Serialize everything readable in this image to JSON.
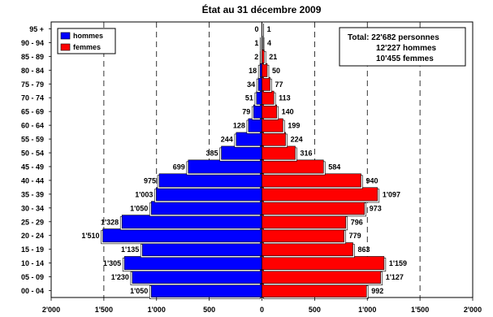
{
  "chart_data": {
    "type": "bar",
    "orientation": "horizontal",
    "layout": "population-pyramid",
    "title": "État au 31 décembre 2009",
    "categories": [
      "00 - 04",
      "05 - 09",
      "10 - 14",
      "15 - 19",
      "20 - 24",
      "25 - 29",
      "30 - 34",
      "35 - 39",
      "40 - 44",
      "45 - 49",
      "50 - 54",
      "55 - 59",
      "60 - 64",
      "65 - 69",
      "70 - 74",
      "75 - 79",
      "80 - 84",
      "85 - 89",
      "90 - 94",
      "95 +"
    ],
    "series": [
      {
        "name": "hommes",
        "color": "#0000FF",
        "side": "left",
        "values": [
          1050,
          1230,
          1305,
          1135,
          1510,
          1328,
          1050,
          1003,
          975,
          699,
          385,
          244,
          128,
          79,
          51,
          34,
          18,
          2,
          1,
          0
        ],
        "labels": [
          "1'050",
          "1'230",
          "1'305",
          "1'135",
          "1'510",
          "1'328",
          "1'050",
          "1'003",
          "975",
          "699",
          "385",
          "244",
          "128",
          "79",
          "51",
          "34",
          "18",
          "2",
          "1",
          "0"
        ]
      },
      {
        "name": "femmes",
        "color": "#FF0000",
        "side": "right",
        "values": [
          992,
          1127,
          1159,
          863,
          779,
          796,
          973,
          1097,
          940,
          584,
          316,
          224,
          199,
          140,
          113,
          77,
          50,
          21,
          4,
          1
        ],
        "labels": [
          "992",
          "1'127",
          "1'159",
          "863",
          "779",
          "796",
          "973",
          "1'097",
          "940",
          "584",
          "316",
          "224",
          "199",
          "140",
          "113",
          "77",
          "50",
          "21",
          "4",
          "1"
        ]
      }
    ],
    "xaxis": {
      "range": [
        -2000,
        2000
      ],
      "ticks": [
        -2000,
        -1500,
        -1000,
        -500,
        0,
        500,
        1000,
        1500,
        2000
      ],
      "tick_labels": [
        "2'000",
        "1'500",
        "1'000",
        "500",
        "0",
        "500",
        "1'000",
        "1'500",
        "2'000"
      ]
    },
    "gridlines": "vertical dashed",
    "legend": {
      "position": "top-left",
      "entries": [
        "hommes",
        "femmes"
      ]
    },
    "annotation": {
      "position": "top-right",
      "lines": [
        "Total: 22'682 personnes",
        "12'227 hommes",
        "10'455 femmes"
      ]
    }
  }
}
